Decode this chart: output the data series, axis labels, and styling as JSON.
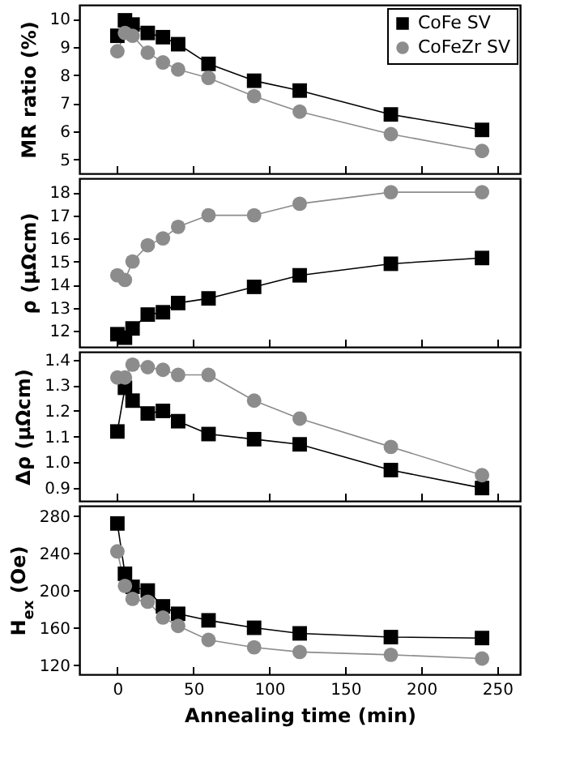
{
  "chart_data": [
    {
      "type": "line",
      "ylabel": "MR ratio (%)",
      "x": [
        0,
        5,
        10,
        20,
        30,
        40,
        60,
        90,
        120,
        180,
        240
      ],
      "xlim": [
        -25,
        265
      ],
      "xticks": [
        0,
        50,
        100,
        150,
        200,
        250
      ],
      "ylim": [
        4.5,
        10.5
      ],
      "yticks": [
        5,
        6,
        7,
        8,
        9,
        10
      ],
      "tick_labels": "y",
      "legend": "top right",
      "grid": false,
      "series": [
        {
          "name": "CoFe SV",
          "color": "#000000",
          "marker": "square",
          "values": [
            9.4,
            9.95,
            9.8,
            9.5,
            9.35,
            9.1,
            8.4,
            7.8,
            7.45,
            6.6,
            6.05
          ]
        },
        {
          "name": "CoFeZr SV",
          "color": "#8c8c8c",
          "marker": "circle",
          "values": [
            8.85,
            9.5,
            9.4,
            8.8,
            8.45,
            8.2,
            7.9,
            7.25,
            6.7,
            5.9,
            5.3
          ]
        }
      ]
    },
    {
      "type": "line",
      "ylabel": "ρ (μΩcm)",
      "x": [
        0,
        5,
        10,
        20,
        30,
        40,
        60,
        90,
        120,
        180,
        240
      ],
      "xlim": [
        -25,
        265
      ],
      "xticks": [
        0,
        50,
        100,
        150,
        200,
        250
      ],
      "ylim": [
        11.3,
        18.6
      ],
      "yticks": [
        12,
        13,
        14,
        15,
        16,
        17,
        18
      ],
      "tick_labels": "y",
      "grid": false,
      "series": [
        {
          "color": "#000000",
          "marker": "square",
          "values": [
            11.85,
            11.7,
            12.1,
            12.7,
            12.8,
            13.2,
            13.4,
            13.9,
            14.4,
            14.9,
            15.15
          ]
        },
        {
          "color": "#8c8c8c",
          "marker": "circle",
          "values": [
            14.4,
            14.2,
            15.0,
            15.7,
            16.0,
            16.5,
            17.0,
            17.0,
            17.5,
            18.0,
            18.0
          ]
        }
      ]
    },
    {
      "type": "line",
      "ylabel": "Δρ (μΩcm)",
      "x": [
        0,
        5,
        10,
        20,
        30,
        40,
        60,
        90,
        120,
        180,
        240
      ],
      "xlim": [
        -25,
        265
      ],
      "xticks": [
        0,
        50,
        100,
        150,
        200,
        250
      ],
      "ylim": [
        0.85,
        1.43
      ],
      "yticks": [
        {
          "value": 0.9,
          "label": "0.9"
        },
        {
          "value": 1.0,
          "label": "1.0"
        },
        {
          "value": 1.1,
          "label": "1.1"
        },
        {
          "value": 1.2,
          "label": "1.2"
        },
        {
          "value": 1.3,
          "label": "1.3"
        },
        {
          "value": 1.4,
          "label": "1.4"
        }
      ],
      "tick_labels": "y",
      "grid": false,
      "series": [
        {
          "color": "#000000",
          "marker": "square",
          "values": [
            1.12,
            1.29,
            1.24,
            1.19,
            1.2,
            1.16,
            1.11,
            1.09,
            1.07,
            0.97,
            0.9
          ]
        },
        {
          "color": "#8c8c8c",
          "marker": "circle",
          "values": [
            1.33,
            1.33,
            1.38,
            1.37,
            1.36,
            1.34,
            1.34,
            1.24,
            1.17,
            1.06,
            0.95
          ]
        }
      ]
    },
    {
      "type": "line",
      "ylabel": "H$_{ex}$ (Oe)",
      "xlabel": "Annealing time (min)",
      "x": [
        0,
        5,
        10,
        20,
        30,
        40,
        60,
        90,
        120,
        180,
        240
      ],
      "xlim": [
        -25,
        265
      ],
      "xticks": [
        0,
        50,
        100,
        150,
        200,
        250
      ],
      "ylim": [
        110,
        291
      ],
      "yticks": [
        120,
        160,
        200,
        240,
        280
      ],
      "grid": false,
      "series": [
        {
          "color": "#000000",
          "marker": "square",
          "values": [
            272,
            218,
            204,
            200,
            183,
            175,
            168,
            160,
            154,
            150,
            149
          ]
        },
        {
          "color": "#8c8c8c",
          "marker": "circle",
          "values": [
            242,
            205,
            191,
            188,
            171,
            162,
            147,
            139,
            134,
            131,
            127
          ]
        }
      ]
    }
  ]
}
